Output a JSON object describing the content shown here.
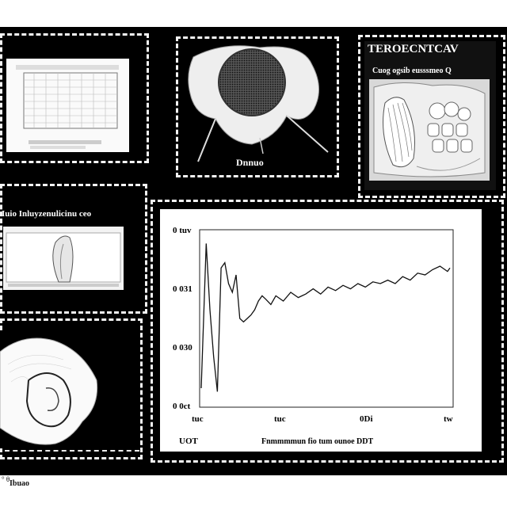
{
  "panels": {
    "specimen_caption": "Dnnuo",
    "top_right_title": "TEROECNTCAV",
    "top_right_subtitle": "Cuog ogsib eusssmeo Q",
    "mid_left_caption": "Iuio Inluyzenulicinu ceo"
  },
  "chart_data": {
    "type": "line",
    "title": "",
    "xlabel": "Fnmmmmun fio tum ounoe DDT",
    "ylabel": "",
    "y_ticks": [
      "0 tuv",
      "0 031",
      "0 030",
      "0 0ct"
    ],
    "x_ticks": [
      "tuc",
      "tuc",
      "0Di",
      "tw"
    ],
    "corner_label": "UOT",
    "y_range": [
      0,
      1
    ],
    "x_range": [
      0,
      100
    ],
    "x": [
      0,
      2,
      3.5,
      5,
      6.5,
      8,
      9.5,
      11,
      12.5,
      14,
      15.5,
      17,
      18.5,
      20,
      21.5,
      23,
      24.5,
      26,
      28,
      30,
      33,
      36,
      39,
      42,
      45,
      48,
      51,
      54,
      57,
      60,
      63,
      66,
      69,
      72,
      75,
      78,
      81,
      84,
      87,
      90,
      93,
      96,
      99,
      100
    ],
    "y": [
      0.1,
      0.93,
      0.55,
      0.28,
      0.08,
      0.79,
      0.82,
      0.7,
      0.65,
      0.75,
      0.5,
      0.48,
      0.5,
      0.52,
      0.55,
      0.6,
      0.63,
      0.61,
      0.58,
      0.63,
      0.6,
      0.65,
      0.62,
      0.64,
      0.67,
      0.64,
      0.68,
      0.66,
      0.69,
      0.67,
      0.7,
      0.68,
      0.71,
      0.7,
      0.72,
      0.7,
      0.74,
      0.72,
      0.76,
      0.75,
      0.78,
      0.8,
      0.77,
      0.79
    ]
  },
  "footer": {
    "mark": "° θ",
    "text": "Ibuao"
  }
}
